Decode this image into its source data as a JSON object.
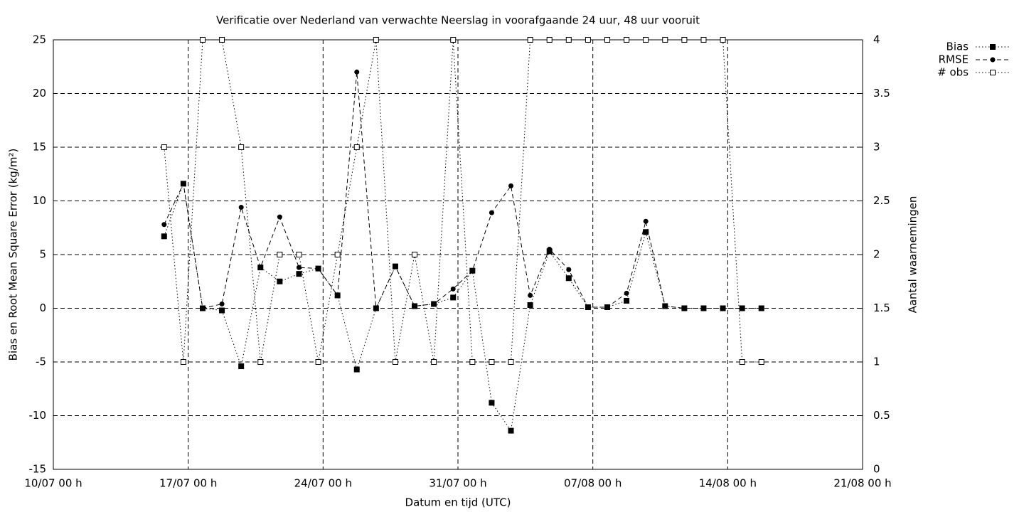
{
  "chart_data": {
    "type": "line",
    "title": "Verificatie over Nederland van verwachte Neerslag in voorafgaande 24 uur, 48 uur vooruit",
    "x_label": "Datum en tijd (UTC)",
    "y_label": "Bias en Root Mean Square Error (kg/m²)",
    "y2_label": "Aantal waarnemingen",
    "x": [
      "15/07 18 h",
      "16/07 18 h",
      "17/07 18 h",
      "18/07 18 h",
      "19/07 18 h",
      "20/07 18 h",
      "21/07 18 h",
      "22/07 18 h",
      "23/07 18 h",
      "24/07 18 h",
      "25/07 18 h",
      "26/07 18 h",
      "27/07 18 h",
      "28/07 18 h",
      "29/07 18 h",
      "30/07 18 h",
      "31/07 18 h",
      "01/08 18 h",
      "02/08 18 h",
      "03/08 18 h",
      "04/08 18 h",
      "05/08 18 h",
      "06/08 18 h",
      "07/08 18 h",
      "08/08 18 h",
      "09/08 18 h",
      "10/08 18 h",
      "11/08 18 h",
      "12/08 18 h",
      "13/08 18 h",
      "14/08 18 h",
      "15/08 18 h"
    ],
    "xlim": [
      "10/07 00 h",
      "21/08 00 h"
    ],
    "xticks": [
      "10/07 00 h",
      "17/07 00 h",
      "24/07 00 h",
      "31/07 00 h",
      "07/08 00 h",
      "14/08 00 h",
      "21/08 00 h"
    ],
    "ylim": [
      -15,
      25
    ],
    "yticks": [
      -15,
      -10,
      -5,
      0,
      5,
      10,
      15,
      20,
      25
    ],
    "y2lim": [
      0,
      4
    ],
    "y2ticks": [
      0,
      0.5,
      1,
      1.5,
      2,
      2.5,
      3,
      3.5,
      4
    ],
    "grid": true,
    "grid_style": "dashed",
    "legend": "top-right-outside",
    "series": [
      {
        "name": "Bias",
        "color": "#000000",
        "line_style": "dotted",
        "marker": "filled-square",
        "values": [
          6.7,
          11.6,
          0,
          -0.2,
          -5.4,
          3.8,
          2.5,
          3.2,
          3.7,
          1.2,
          -5.7,
          0,
          3.9,
          0.2,
          0.4,
          1.0,
          3.5,
          -8.8,
          -11.4,
          0.3,
          5.3,
          2.8,
          0.1,
          0.1,
          0.7,
          7.1,
          0.2,
          0,
          0,
          0,
          0,
          0
        ]
      },
      {
        "name": "RMSE",
        "color": "#000000",
        "line_style": "dashed",
        "marker": "filled-circle",
        "values": [
          7.8,
          11.6,
          0,
          0.4,
          9.4,
          3.8,
          8.5,
          3.8,
          3.7,
          1.2,
          22.0,
          0,
          3.9,
          0.2,
          0.4,
          1.8,
          3.5,
          8.9,
          11.4,
          1.2,
          5.5,
          3.6,
          0.1,
          0.1,
          1.4,
          8.1,
          0.2,
          0,
          0,
          0,
          0,
          0
        ]
      },
      {
        "name": "# obs",
        "color": "#000000",
        "line_style": "dotted",
        "marker": "open-square",
        "axis": "y2",
        "values": [
          3,
          1,
          4,
          4,
          3,
          1,
          2,
          2,
          1,
          2,
          3,
          4,
          1,
          2,
          1,
          4,
          1,
          1,
          1,
          4,
          4,
          4,
          4,
          4,
          4,
          4,
          4,
          4,
          4,
          4,
          1,
          1
        ]
      }
    ]
  }
}
